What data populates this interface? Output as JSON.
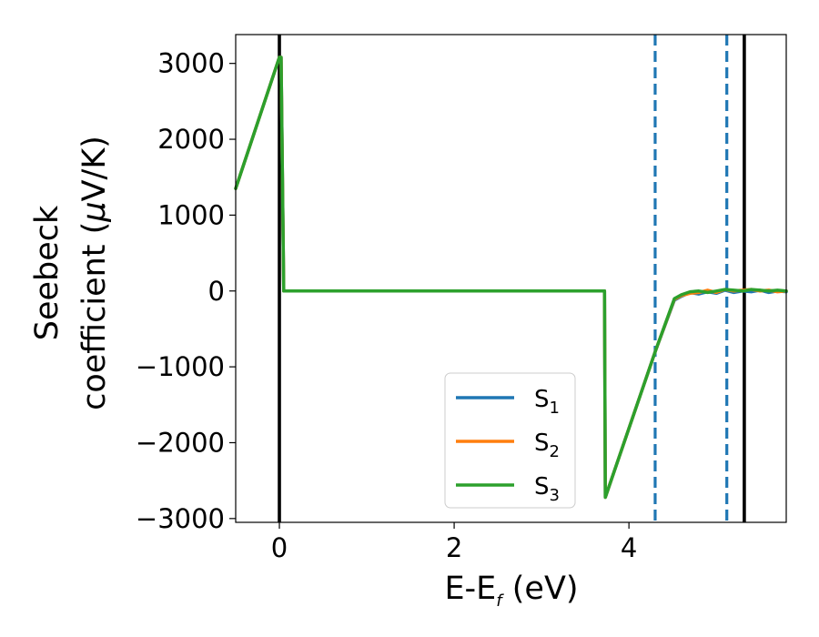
{
  "chart_data": {
    "type": "line",
    "xlabel": {
      "main": "E-E",
      "sub": "f",
      "unit": " (eV)"
    },
    "ylabel": {
      "line1": "Seebeck",
      "line2_text": "coefficient  (",
      "line2_mu": "μ",
      "line2_unit": "V/K)"
    },
    "xlim": [
      -0.5,
      5.8
    ],
    "ylim": [
      -3050,
      3380
    ],
    "xticks": [
      0,
      2,
      4
    ],
    "xtick_labels": [
      "0",
      "2",
      "4"
    ],
    "yticks": [
      -3000,
      -2000,
      -1000,
      0,
      1000,
      2000,
      3000
    ],
    "ytick_labels": [
      "−3000",
      "−2000",
      "−1000",
      "0",
      "1000",
      "2000",
      "3000"
    ],
    "grid": false,
    "legend_position": "lower center",
    "vlines": [
      {
        "x": 0.0,
        "style": "solid",
        "color": "#000000"
      },
      {
        "x": 5.32,
        "style": "solid",
        "color": "#000000"
      },
      {
        "x": 4.3,
        "style": "dashed",
        "color": "#1f77b4"
      },
      {
        "x": 5.12,
        "style": "dashed",
        "color": "#1f77b4"
      }
    ],
    "series": [
      {
        "name": "S",
        "sub": "1",
        "color": "#1f77b4",
        "x": [
          -0.5,
          0.0,
          0.02,
          0.05,
          3.72,
          3.73,
          4.3,
          4.52,
          4.6,
          4.7,
          4.8,
          4.9,
          5.0,
          5.1,
          5.2,
          5.3,
          5.4,
          5.5,
          5.6,
          5.7,
          5.8
        ],
        "y": [
          1350,
          3080,
          3080,
          0,
          0,
          -2720,
          -800,
          -120,
          -70,
          -20,
          -40,
          -10,
          -30,
          10,
          -20,
          0,
          -10,
          10,
          -20,
          0,
          -10
        ]
      },
      {
        "name": "S",
        "sub": "2",
        "color": "#ff7f0e",
        "x": [
          -0.5,
          0.0,
          0.02,
          0.05,
          3.72,
          3.73,
          4.3,
          4.52,
          4.6,
          4.7,
          4.8,
          4.9,
          5.0,
          5.1,
          5.2,
          5.3,
          5.4,
          5.5,
          5.6,
          5.7,
          5.8
        ],
        "y": [
          1350,
          3080,
          3080,
          0,
          0,
          -2720,
          -800,
          -110,
          -60,
          -30,
          -20,
          10,
          -20,
          20,
          0,
          10,
          20,
          0,
          10,
          -10,
          0
        ]
      },
      {
        "name": "S",
        "sub": "3",
        "color": "#2ca02c",
        "x": [
          -0.5,
          0.0,
          0.02,
          0.05,
          3.72,
          3.73,
          4.3,
          4.52,
          4.6,
          4.7,
          4.8,
          4.9,
          5.0,
          5.1,
          5.2,
          5.3,
          5.4,
          5.5,
          5.6,
          5.7,
          5.8
        ],
        "y": [
          1350,
          3080,
          3080,
          0,
          0,
          -2720,
          -800,
          -100,
          -50,
          -10,
          0,
          -20,
          0,
          20,
          10,
          0,
          20,
          10,
          0,
          10,
          0
        ]
      }
    ]
  }
}
